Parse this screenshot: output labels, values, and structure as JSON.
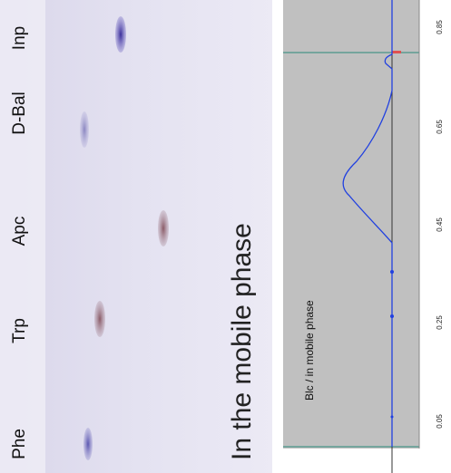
{
  "plate": {
    "lanes": [
      "Phe",
      "Trp",
      "Apc",
      "D-Bal",
      "Inp"
    ],
    "caption": "In the mobile phase"
  },
  "scan": {
    "label": "Blc / in mobile phase",
    "ticks": [
      "0.05",
      "0.25",
      "0.45",
      "0.65",
      "0.85"
    ]
  }
}
